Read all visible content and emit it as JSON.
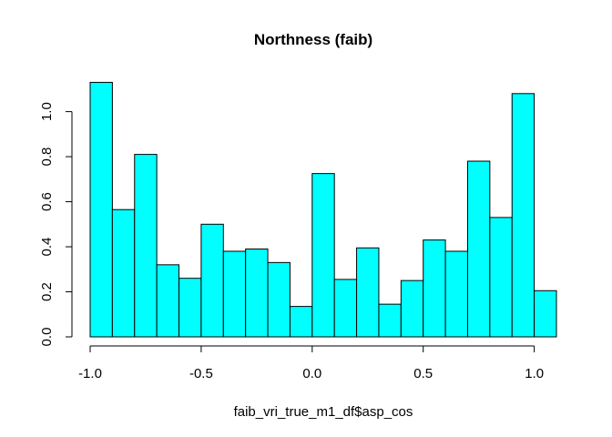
{
  "chart_data": {
    "type": "bar",
    "title": "Northness (faib)",
    "xlabel": "faib_vri_true_m1_df$asp_cos",
    "ylabel": "",
    "bar_color": "#00ffff",
    "bin_width": 0.1,
    "bin_starts": [
      -1.0,
      -0.9,
      -0.8,
      -0.7,
      -0.6,
      -0.5,
      -0.4,
      -0.3,
      -0.2,
      -0.1,
      0.0,
      0.1,
      0.2,
      0.3,
      0.4,
      0.5,
      0.6,
      0.7,
      0.8,
      0.9,
      1.0
    ],
    "values": [
      1.13,
      0.565,
      0.81,
      0.32,
      0.26,
      0.5,
      0.38,
      0.39,
      0.33,
      0.135,
      0.725,
      0.255,
      0.395,
      0.145,
      0.25,
      0.43,
      0.38,
      0.78,
      0.53,
      1.08,
      0.205
    ],
    "xlim": [
      -1.0,
      1.1
    ],
    "ylim": [
      0,
      1.15
    ],
    "x_ticks": [
      -1.0,
      -0.5,
      0.0,
      0.5,
      1.0
    ],
    "x_tick_labels": [
      "-1.0",
      "-0.5",
      "0.0",
      "0.5",
      "1.0"
    ],
    "y_ticks": [
      0.0,
      0.2,
      0.4,
      0.6,
      0.8,
      1.0
    ],
    "y_tick_labels": [
      "0.0",
      "0.2",
      "0.4",
      "0.6",
      "0.8",
      "1.0"
    ],
    "grid": false
  }
}
